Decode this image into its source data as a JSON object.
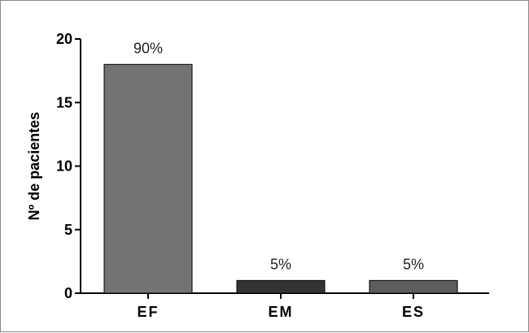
{
  "chart_data": {
    "type": "bar",
    "title": "",
    "xlabel": "",
    "ylabel": "Nº de pacientes",
    "ylim": [
      0,
      20
    ],
    "yticks": [
      0,
      5,
      10,
      15,
      20
    ],
    "categories": [
      "EF",
      "EM",
      "ES"
    ],
    "values": [
      18,
      1,
      1
    ],
    "data_labels": [
      "90%",
      "5%",
      "5%"
    ],
    "colors": [
      "#737373",
      "#333333",
      "#5e5e5e"
    ],
    "grid": false,
    "legend": "none"
  }
}
